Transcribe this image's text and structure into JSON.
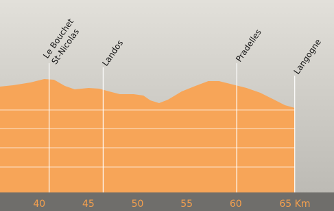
{
  "chart_data": {
    "type": "area",
    "x": [
      36.0,
      37.35,
      39.1,
      40.5,
      41.5,
      42.6,
      43.6,
      45.0,
      46.1,
      47.1,
      48.2,
      49.6,
      50.6,
      51.3,
      52.2,
      53.1,
      54.5,
      55.9,
      57.2,
      58.3,
      59.7,
      61.1,
      62.5,
      63.9,
      65.0,
      66.0
    ],
    "values": [
      154,
      156,
      160,
      165,
      164,
      155,
      150,
      152,
      151,
      147,
      143,
      143,
      141,
      134,
      130,
      135,
      147,
      155,
      162,
      162,
      157,
      152,
      145,
      135,
      127,
      123
    ],
    "color": "#f7a558",
    "xlim": [
      36,
      70
    ],
    "ylim": [
      0,
      170
    ],
    "xticks": [
      40,
      45,
      50,
      55,
      60,
      {
        "value": 65,
        "label": "65 Km"
      }
    ],
    "towns": [
      {
        "lines": [
          "Le Bouchet",
          "St-Nicolas"
        ],
        "x": 41
      },
      {
        "lines": [
          "Landos"
        ],
        "x": 46.5
      },
      {
        "lines": [
          "Pradelles"
        ],
        "x": 60.1
      },
      {
        "lines": [
          "Langogne"
        ],
        "x": 66
      }
    ]
  }
}
